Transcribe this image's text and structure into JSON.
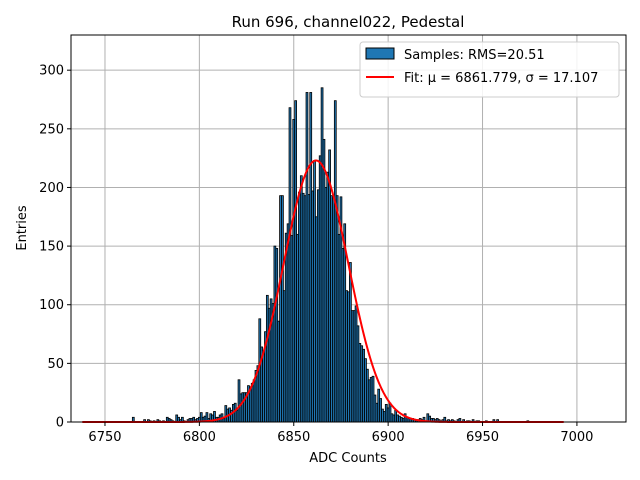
{
  "chart_data": {
    "type": "bar",
    "title": "Run 696, channel022, Pedestal",
    "xlabel": "ADC Counts",
    "ylabel": "Entries",
    "xlim": [
      6732,
      7026
    ],
    "ylim": [
      0,
      330
    ],
    "xticks": [
      6750,
      6800,
      6850,
      6900,
      6950,
      7000
    ],
    "yticks": [
      0,
      50,
      100,
      150,
      200,
      250,
      300
    ],
    "grid": true,
    "legend_position": "top-right",
    "colors": {
      "bar_fill": "#1f77b4",
      "bar_edge": "#000000",
      "fit_line": "#ff0000",
      "grid": "#b0b0b0"
    },
    "legend": [
      {
        "kind": "patch",
        "label": "Samples: RMS=20.51"
      },
      {
        "kind": "line",
        "label": "Fit: μ = 6861.779, σ = 17.107"
      }
    ],
    "histogram": {
      "bin_width": 1,
      "bin_centers": [
        6765,
        6771,
        6773,
        6774,
        6776,
        6778,
        6779,
        6781,
        6783,
        6784,
        6785,
        6786,
        6788,
        6789,
        6790,
        6791,
        6792,
        6794,
        6795,
        6796,
        6797,
        6798,
        6799,
        6800,
        6801,
        6802,
        6803,
        6804,
        6805,
        6806,
        6807,
        6808,
        6809,
        6810,
        6811,
        6812,
        6813,
        6814,
        6815,
        6816,
        6817,
        6818,
        6819,
        6820,
        6821,
        6822,
        6823,
        6824,
        6825,
        6826,
        6827,
        6828,
        6829,
        6830,
        6831,
        6832,
        6833,
        6834,
        6835,
        6836,
        6837,
        6838,
        6839,
        6840,
        6841,
        6842,
        6843,
        6844,
        6845,
        6846,
        6847,
        6848,
        6849,
        6850,
        6851,
        6852,
        6853,
        6854,
        6855,
        6856,
        6857,
        6858,
        6859,
        6860,
        6861,
        6862,
        6863,
        6864,
        6865,
        6866,
        6867,
        6868,
        6869,
        6870,
        6871,
        6872,
        6873,
        6874,
        6875,
        6876,
        6877,
        6878,
        6879,
        6880,
        6881,
        6882,
        6883,
        6884,
        6885,
        6886,
        6887,
        6888,
        6889,
        6890,
        6891,
        6892,
        6893,
        6894,
        6895,
        6896,
        6897,
        6898,
        6899,
        6900,
        6901,
        6902,
        6903,
        6904,
        6905,
        6906,
        6907,
        6908,
        6909,
        6910,
        6911,
        6912,
        6913,
        6914,
        6915,
        6916,
        6917,
        6918,
        6919,
        6920,
        6921,
        6922,
        6923,
        6924,
        6925,
        6926,
        6927,
        6928,
        6929,
        6930,
        6931,
        6932,
        6933,
        6934,
        6935,
        6937,
        6938,
        6940,
        6942,
        6943,
        6945,
        6947,
        6948,
        6952,
        6956,
        6958,
        6974
      ],
      "counts": [
        4,
        2,
        2,
        1,
        1,
        2,
        1,
        1,
        4,
        3,
        2,
        1,
        6,
        4,
        2,
        4,
        1,
        2,
        3,
        3,
        4,
        2,
        3,
        4,
        8,
        4,
        5,
        8,
        3,
        7,
        6,
        9,
        4,
        4,
        6,
        7,
        3,
        14,
        11,
        12,
        10,
        15,
        16,
        10,
        36,
        24,
        25,
        25,
        25,
        31,
        30,
        33,
        36,
        44,
        48,
        88,
        64,
        59,
        77,
        108,
        97,
        105,
        101,
        150,
        148,
        86,
        193,
        193,
        112,
        161,
        169,
        268,
        159,
        258,
        274,
        160,
        196,
        210,
        195,
        193,
        281,
        194,
        281,
        197,
        223,
        175,
        198,
        227,
        285,
        241,
        200,
        213,
        232,
        193,
        192,
        274,
        193,
        160,
        192,
        148,
        169,
        112,
        111,
        136,
        95,
        95,
        99,
        82,
        67,
        65,
        62,
        54,
        45,
        36,
        38,
        39,
        23,
        16,
        28,
        20,
        11,
        9,
        15,
        12,
        16,
        7,
        6,
        10,
        6,
        5,
        4,
        3,
        7,
        4,
        3,
        3,
        3,
        2,
        1,
        2,
        3,
        2,
        4,
        1,
        7,
        5,
        3,
        3,
        2,
        3,
        2,
        1,
        2,
        4,
        1,
        2,
        1,
        2,
        1,
        2,
        3,
        2,
        1,
        1,
        2,
        1,
        1,
        1,
        2,
        2,
        1,
        1,
        1,
        1,
        2
      ]
    },
    "fit": {
      "mu": 6861.779,
      "sigma": 17.107,
      "amplitude": 223,
      "x_range": [
        6738,
        6993
      ]
    }
  }
}
